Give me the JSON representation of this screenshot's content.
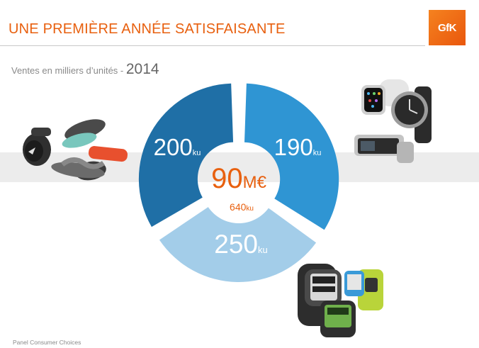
{
  "header": {
    "title": "UNE PREMIÈRE ANNÉE SATISFAISANTE",
    "logo_text": "GfK",
    "subtitle_text": "Ventes en milliers d’unités - ",
    "subtitle_year": "2014"
  },
  "footer": {
    "source": "Panel Consumer Choices"
  },
  "colors": {
    "accent": "#e8600f",
    "segment_dark_blue": "#1f6fa6",
    "segment_mid_blue": "#2f95d3",
    "segment_light_blue": "#a3cde9"
  },
  "chart_data": {
    "type": "pie",
    "slices": [
      {
        "value": 200,
        "value_label": "200",
        "unit": "ku"
      },
      {
        "value": 190,
        "value_label": "190",
        "unit": "ku"
      },
      {
        "value": 250,
        "value_label": "250",
        "unit": "ku"
      }
    ],
    "center": {
      "value_label": "90",
      "value_unit": "M€",
      "total_label": "640",
      "total_unit": "ku"
    }
  },
  "images": [
    {
      "icon": "fitness-trackers-icon"
    },
    {
      "icon": "smartwatches-icon"
    },
    {
      "icon": "sport-watches-icon"
    }
  ]
}
